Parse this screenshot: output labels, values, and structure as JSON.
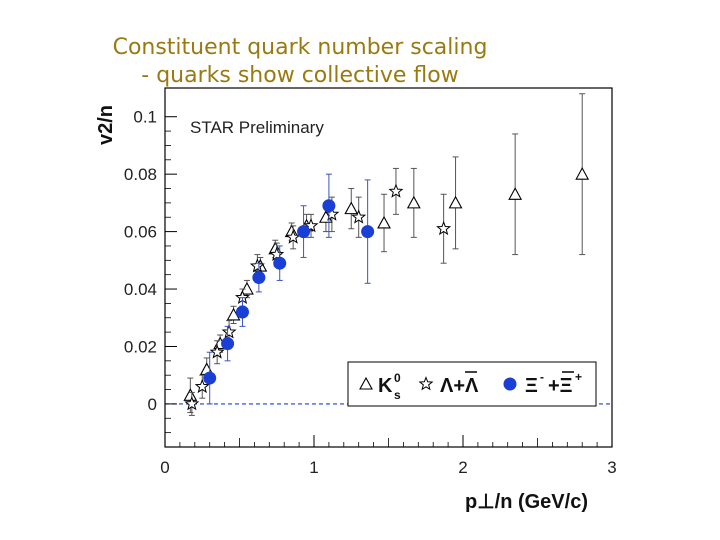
{
  "slide": {
    "title_line1": "Constituent quark number scaling",
    "title_line2": "- quarks show collective flow"
  },
  "chart_data": {
    "type": "scatter",
    "annotation": "STAR Preliminary",
    "xlabel": "p⊥/n (GeV/c)",
    "ylabel": "v2/n",
    "xlim": [
      0,
      3
    ],
    "ylim": [
      -0.015,
      0.11
    ],
    "x_ticks": [
      "0",
      "1",
      "2",
      "3"
    ],
    "x_tick_values": [
      0,
      1,
      2,
      3
    ],
    "y_ticks": [
      "0",
      "0.02",
      "0.04",
      "0.06",
      "0.08",
      "0.1"
    ],
    "y_tick_values": [
      0,
      0.02,
      0.04,
      0.06,
      0.08,
      0.1
    ],
    "zero_line": true,
    "legend_position": "bottom-right",
    "series": [
      {
        "name": "K0s",
        "label": "K",
        "label_sup": "0",
        "label_sub": "s",
        "marker": "triangle",
        "color": "#000000",
        "points": [
          {
            "x": 0.17,
            "y": 0.003,
            "err": 0.006
          },
          {
            "x": 0.28,
            "y": 0.012,
            "err": 0.004
          },
          {
            "x": 0.37,
            "y": 0.021,
            "err": 0.003
          },
          {
            "x": 0.46,
            "y": 0.031,
            "err": 0.003
          },
          {
            "x": 0.55,
            "y": 0.04,
            "err": 0.003
          },
          {
            "x": 0.64,
            "y": 0.048,
            "err": 0.003
          },
          {
            "x": 0.74,
            "y": 0.054,
            "err": 0.003
          },
          {
            "x": 0.85,
            "y": 0.06,
            "err": 0.003
          },
          {
            "x": 0.95,
            "y": 0.062,
            "err": 0.004
          },
          {
            "x": 1.08,
            "y": 0.065,
            "err": 0.005
          },
          {
            "x": 1.25,
            "y": 0.068,
            "err": 0.007
          },
          {
            "x": 1.47,
            "y": 0.063,
            "err": 0.01
          },
          {
            "x": 1.67,
            "y": 0.07,
            "err": 0.012
          },
          {
            "x": 1.95,
            "y": 0.07,
            "err": 0.016
          },
          {
            "x": 2.35,
            "y": 0.073,
            "err": 0.021
          },
          {
            "x": 2.8,
            "y": 0.08,
            "err": 0.028
          }
        ]
      },
      {
        "name": "Lambda+AntiLambda",
        "label": "Λ+Λ",
        "marker": "star",
        "color": "#000000",
        "points": [
          {
            "x": 0.18,
            "y": 0.0,
            "err": 0.004
          },
          {
            "x": 0.25,
            "y": 0.006,
            "err": 0.004
          },
          {
            "x": 0.35,
            "y": 0.018,
            "err": 0.004
          },
          {
            "x": 0.43,
            "y": 0.025,
            "err": 0.004
          },
          {
            "x": 0.52,
            "y": 0.037,
            "err": 0.003
          },
          {
            "x": 0.62,
            "y": 0.048,
            "err": 0.004
          },
          {
            "x": 0.75,
            "y": 0.052,
            "err": 0.004
          },
          {
            "x": 0.86,
            "y": 0.058,
            "err": 0.004
          },
          {
            "x": 0.98,
            "y": 0.062,
            "err": 0.004
          },
          {
            "x": 1.12,
            "y": 0.066,
            "err": 0.006
          },
          {
            "x": 1.3,
            "y": 0.065,
            "err": 0.007
          },
          {
            "x": 1.55,
            "y": 0.074,
            "err": 0.008
          },
          {
            "x": 1.87,
            "y": 0.061,
            "err": 0.012
          }
        ]
      },
      {
        "name": "Xi-+AntiXi+",
        "label": "Ξ",
        "marker": "circle",
        "color": "#1a3fd6",
        "points": [
          {
            "x": 0.3,
            "y": 0.009,
            "err": 0.009
          },
          {
            "x": 0.42,
            "y": 0.021,
            "err": 0.006
          },
          {
            "x": 0.52,
            "y": 0.032,
            "err": 0.005
          },
          {
            "x": 0.63,
            "y": 0.044,
            "err": 0.005
          },
          {
            "x": 0.77,
            "y": 0.049,
            "err": 0.006
          },
          {
            "x": 0.93,
            "y": 0.06,
            "err": 0.009
          },
          {
            "x": 1.1,
            "y": 0.069,
            "err": 0.011
          },
          {
            "x": 1.36,
            "y": 0.06,
            "err": 0.018
          }
        ]
      }
    ]
  }
}
